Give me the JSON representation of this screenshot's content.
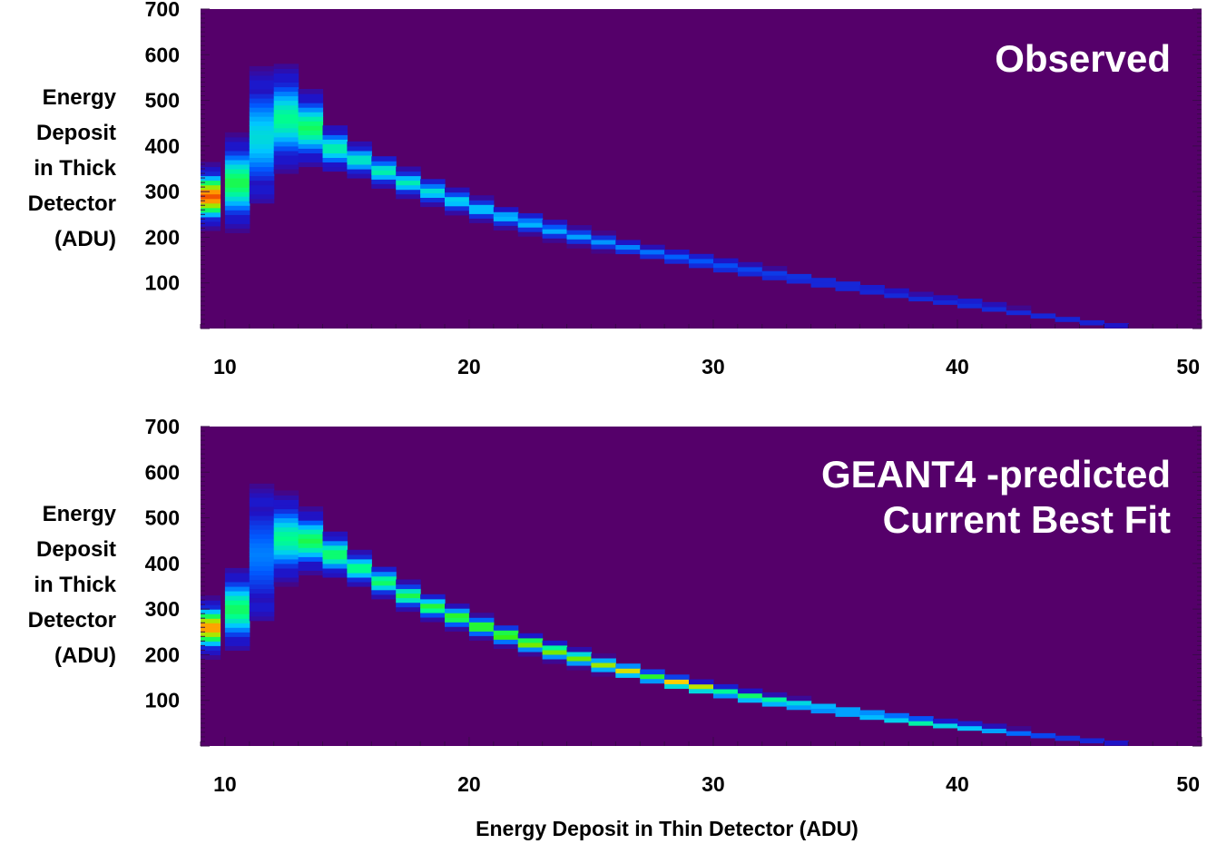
{
  "chart_data": [
    {
      "type": "heatmap",
      "title": "Observed",
      "ylabel": "Energy\nDeposit\nin Thick\nDetector\n(ADU)",
      "xlabel": "",
      "xlim": [
        9,
        50
      ],
      "ylim": [
        0,
        700
      ],
      "xticks": [
        10,
        20,
        30,
        40,
        50
      ],
      "yticks": [
        100,
        200,
        300,
        400,
        500,
        600,
        700
      ],
      "background_color": "#55006a",
      "colorscale": "rainbow",
      "ridge": [
        {
          "x": 9.3,
          "y": 290,
          "width": 110,
          "intensity": 0.95
        },
        {
          "x": 10.5,
          "y": 320,
          "width": 160,
          "intensity": 0.62
        },
        {
          "x": 11.5,
          "y": 420,
          "width": 230,
          "intensity": 0.45
        },
        {
          "x": 12.5,
          "y": 460,
          "width": 180,
          "intensity": 0.55
        },
        {
          "x": 13.5,
          "y": 440,
          "width": 130,
          "intensity": 0.6
        },
        {
          "x": 14.5,
          "y": 395,
          "width": 80,
          "intensity": 0.52
        },
        {
          "x": 15.5,
          "y": 370,
          "width": 60,
          "intensity": 0.5
        },
        {
          "x": 16.5,
          "y": 345,
          "width": 55,
          "intensity": 0.52
        },
        {
          "x": 17.5,
          "y": 320,
          "width": 50,
          "intensity": 0.5
        },
        {
          "x": 18.5,
          "y": 300,
          "width": 45,
          "intensity": 0.47
        },
        {
          "x": 19.5,
          "y": 280,
          "width": 42,
          "intensity": 0.45
        },
        {
          "x": 20.5,
          "y": 262,
          "width": 40,
          "intensity": 0.43
        },
        {
          "x": 21.5,
          "y": 245,
          "width": 38,
          "intensity": 0.41
        },
        {
          "x": 22.5,
          "y": 230,
          "width": 35,
          "intensity": 0.39
        },
        {
          "x": 23.5,
          "y": 215,
          "width": 33,
          "intensity": 0.37
        },
        {
          "x": 24.5,
          "y": 202,
          "width": 31,
          "intensity": 0.35
        },
        {
          "x": 25.5,
          "y": 190,
          "width": 30,
          "intensity": 0.33
        },
        {
          "x": 26.5,
          "y": 178,
          "width": 28,
          "intensity": 0.31
        },
        {
          "x": 27.5,
          "y": 167,
          "width": 27,
          "intensity": 0.29
        },
        {
          "x": 28.5,
          "y": 156,
          "width": 26,
          "intensity": 0.27
        },
        {
          "x": 29.5,
          "y": 146,
          "width": 25,
          "intensity": 0.26
        },
        {
          "x": 30.5,
          "y": 136,
          "width": 24,
          "intensity": 0.25
        },
        {
          "x": 31.5,
          "y": 127,
          "width": 23,
          "intensity": 0.24
        },
        {
          "x": 32.5,
          "y": 118,
          "width": 22,
          "intensity": 0.23
        },
        {
          "x": 33.5,
          "y": 110,
          "width": 21,
          "intensity": 0.22
        },
        {
          "x": 34.5,
          "y": 101,
          "width": 20,
          "intensity": 0.21
        },
        {
          "x": 35.5,
          "y": 93,
          "width": 20,
          "intensity": 0.21
        },
        {
          "x": 36.5,
          "y": 85,
          "width": 19,
          "intensity": 0.2
        },
        {
          "x": 37.5,
          "y": 77,
          "width": 18,
          "intensity": 0.2
        },
        {
          "x": 38.5,
          "y": 69,
          "width": 17,
          "intensity": 0.19
        },
        {
          "x": 39.5,
          "y": 61,
          "width": 16,
          "intensity": 0.18
        },
        {
          "x": 40.5,
          "y": 53,
          "width": 15,
          "intensity": 0.18
        },
        {
          "x": 41.5,
          "y": 45,
          "width": 14,
          "intensity": 0.17
        },
        {
          "x": 42.5,
          "y": 37,
          "width": 13,
          "intensity": 0.16
        },
        {
          "x": 43.5,
          "y": 29,
          "width": 12,
          "intensity": 0.15
        },
        {
          "x": 44.5,
          "y": 21,
          "width": 11,
          "intensity": 0.14
        },
        {
          "x": 45.5,
          "y": 13,
          "width": 10,
          "intensity": 0.13
        },
        {
          "x": 46.5,
          "y": 6,
          "width": 8,
          "intensity": 0.11
        }
      ]
    },
    {
      "type": "heatmap",
      "title": "GEANT4 -predicted\nCurrent Best Fit",
      "ylabel": "Energy\nDeposit\nin Thick\nDetector\n(ADU)",
      "xlabel": "Energy Deposit in Thin Detector (ADU)",
      "xlim": [
        9,
        50
      ],
      "ylim": [
        0,
        700
      ],
      "xticks": [
        10,
        20,
        30,
        40,
        50
      ],
      "yticks": [
        100,
        200,
        300,
        400,
        500,
        600,
        700
      ],
      "background_color": "#55006a",
      "colorscale": "rainbow",
      "ridge": [
        {
          "x": 9.3,
          "y": 260,
          "width": 100,
          "intensity": 0.9
        },
        {
          "x": 10.5,
          "y": 300,
          "width": 140,
          "intensity": 0.6
        },
        {
          "x": 11.5,
          "y": 420,
          "width": 230,
          "intensity": 0.3
        },
        {
          "x": 12.5,
          "y": 455,
          "width": 150,
          "intensity": 0.55
        },
        {
          "x": 13.5,
          "y": 450,
          "width": 110,
          "intensity": 0.62
        },
        {
          "x": 14.5,
          "y": 420,
          "width": 80,
          "intensity": 0.6
        },
        {
          "x": 15.5,
          "y": 390,
          "width": 60,
          "intensity": 0.58
        },
        {
          "x": 16.5,
          "y": 360,
          "width": 55,
          "intensity": 0.6
        },
        {
          "x": 17.5,
          "y": 330,
          "width": 50,
          "intensity": 0.62
        },
        {
          "x": 18.5,
          "y": 305,
          "width": 45,
          "intensity": 0.66
        },
        {
          "x": 19.5,
          "y": 283,
          "width": 42,
          "intensity": 0.7
        },
        {
          "x": 20.5,
          "y": 262,
          "width": 40,
          "intensity": 0.72
        },
        {
          "x": 21.5,
          "y": 243,
          "width": 38,
          "intensity": 0.74
        },
        {
          "x": 22.5,
          "y": 225,
          "width": 36,
          "intensity": 0.78
        },
        {
          "x": 23.5,
          "y": 208,
          "width": 34,
          "intensity": 0.76
        },
        {
          "x": 24.5,
          "y": 193,
          "width": 32,
          "intensity": 0.74
        },
        {
          "x": 25.5,
          "y": 178,
          "width": 30,
          "intensity": 0.76
        },
        {
          "x": 26.5,
          "y": 165,
          "width": 29,
          "intensity": 0.8
        },
        {
          "x": 27.5,
          "y": 152,
          "width": 28,
          "intensity": 0.66
        },
        {
          "x": 28.5,
          "y": 140,
          "width": 27,
          "intensity": 0.86
        },
        {
          "x": 29.5,
          "y": 129,
          "width": 26,
          "intensity": 0.82
        },
        {
          "x": 30.5,
          "y": 118,
          "width": 25,
          "intensity": 0.58
        },
        {
          "x": 31.5,
          "y": 108,
          "width": 24,
          "intensity": 0.66
        },
        {
          "x": 32.5,
          "y": 99,
          "width": 23,
          "intensity": 0.62
        },
        {
          "x": 33.5,
          "y": 91,
          "width": 22,
          "intensity": 0.55
        },
        {
          "x": 34.5,
          "y": 83,
          "width": 21,
          "intensity": 0.5
        },
        {
          "x": 35.5,
          "y": 75,
          "width": 20,
          "intensity": 0.52
        },
        {
          "x": 36.5,
          "y": 68,
          "width": 19,
          "intensity": 0.55
        },
        {
          "x": 37.5,
          "y": 61,
          "width": 18,
          "intensity": 0.58
        },
        {
          "x": 38.5,
          "y": 54,
          "width": 17,
          "intensity": 0.68
        },
        {
          "x": 39.5,
          "y": 48,
          "width": 16,
          "intensity": 0.55
        },
        {
          "x": 40.5,
          "y": 42,
          "width": 15,
          "intensity": 0.48
        },
        {
          "x": 41.5,
          "y": 36,
          "width": 14,
          "intensity": 0.4
        },
        {
          "x": 42.5,
          "y": 30,
          "width": 13,
          "intensity": 0.3
        },
        {
          "x": 43.5,
          "y": 24,
          "width": 12,
          "intensity": 0.22
        },
        {
          "x": 44.5,
          "y": 18,
          "width": 11,
          "intensity": 0.17
        },
        {
          "x": 45.5,
          "y": 12,
          "width": 10,
          "intensity": 0.14
        },
        {
          "x": 46.5,
          "y": 6,
          "width": 8,
          "intensity": 0.11
        }
      ]
    }
  ]
}
